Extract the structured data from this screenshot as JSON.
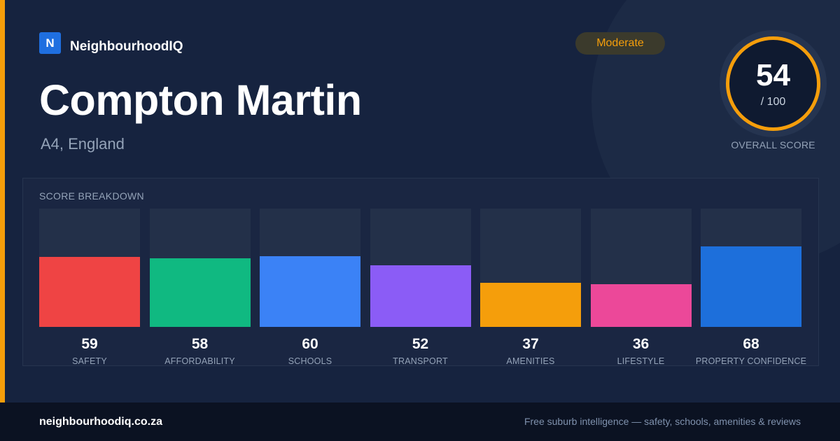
{
  "brand": {
    "logo_letter": "N",
    "name": "NeighbourhoodIQ"
  },
  "suburb": {
    "name": "Compton Martin",
    "region": "A4, England"
  },
  "badge": {
    "label": "Moderate",
    "color": "#f59e0b"
  },
  "overall": {
    "score": "54",
    "max": "/ 100",
    "caption": "OVERALL SCORE"
  },
  "breakdown": {
    "title": "SCORE BREAKDOWN",
    "items": [
      {
        "label": "SAFETY",
        "value": 59,
        "color": "#ef4444"
      },
      {
        "label": "AFFORDABILITY",
        "value": 58,
        "color": "#10b981"
      },
      {
        "label": "SCHOOLS",
        "value": 60,
        "color": "#3b82f6"
      },
      {
        "label": "TRANSPORT",
        "value": 52,
        "color": "#8b5cf6"
      },
      {
        "label": "AMENITIES",
        "value": 37,
        "color": "#f59e0b"
      },
      {
        "label": "LIFESTYLE",
        "value": 36,
        "color": "#ec4899"
      },
      {
        "label": "PROPERTY CONFIDENCE",
        "value": 68,
        "color": "#1d6fdb"
      }
    ]
  },
  "footer": {
    "domain": "neighbourhoodiq.co.za",
    "tagline": "Free suburb intelligence — safety, schools, amenities & reviews"
  },
  "colors": {
    "background": "#16233f",
    "accent": "#f59e0b",
    "brand_blue": "#1f6fe0"
  }
}
